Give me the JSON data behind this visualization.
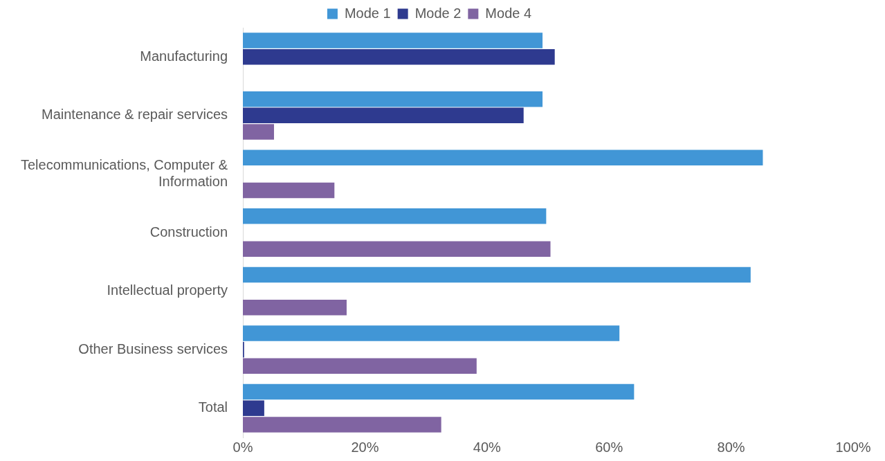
{
  "chart_data": {
    "type": "bar",
    "orientation": "horizontal",
    "categories": [
      "Manufacturing",
      "Maintenance & repair services",
      "Telecommunications, Computer & Information",
      "Construction",
      "Intellectual property",
      "Other Business services",
      "Total"
    ],
    "series": [
      {
        "name": "Mode 1",
        "color": "#4196d6",
        "values": [
          49.1,
          49.1,
          85.2,
          49.7,
          83.2,
          61.7,
          64.1
        ]
      },
      {
        "name": "Mode 2",
        "color": "#2e3a8f",
        "values": [
          51.1,
          46.0,
          null,
          null,
          null,
          0.2,
          3.5
        ]
      },
      {
        "name": "Mode 4",
        "color": "#8064a2",
        "values": [
          null,
          5.1,
          15.0,
          50.4,
          17.0,
          38.3,
          32.5
        ]
      }
    ],
    "xlim": [
      0,
      100
    ],
    "xticks": [
      {
        "value": 0,
        "label": "0%"
      },
      {
        "value": 20,
        "label": "20%"
      },
      {
        "value": 40,
        "label": "40%"
      },
      {
        "value": 60,
        "label": "60%"
      },
      {
        "value": 80,
        "label": "80%"
      },
      {
        "value": 100,
        "label": "100%"
      }
    ],
    "grid": false,
    "legend": "top"
  }
}
